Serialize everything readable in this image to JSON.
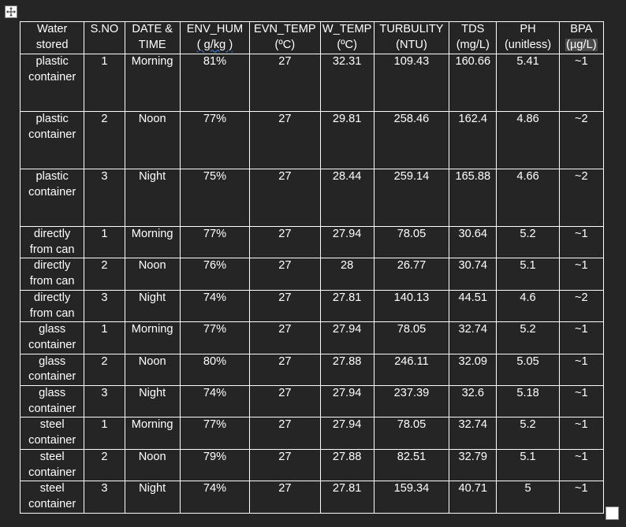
{
  "table": {
    "headers": [
      {
        "line1": "Water",
        "line2": "stored"
      },
      {
        "line1": "S.NO",
        "line2": ""
      },
      {
        "line1": "DATE &",
        "line2": "TIME"
      },
      {
        "line1": "ENV_HUM",
        "line2": "( g/kg )"
      },
      {
        "line1": "EVN_TEMP",
        "line2": "(ºC)"
      },
      {
        "line1": "W_TEMP",
        "line2": "(ºC)"
      },
      {
        "line1": "TURBULITY",
        "line2": "(NTU)"
      },
      {
        "line1": "TDS",
        "line2": "(mg/L)"
      },
      {
        "line1": "PH",
        "line2": "(unitless)"
      },
      {
        "line1": "BPA",
        "line2": "(µg/L)"
      }
    ],
    "rows": [
      {
        "water": "plastic container",
        "sno": "1",
        "time": "Morning",
        "hum": "81%",
        "env_temp": "27",
        "w_temp": "32.31",
        "turbidity": "109.43",
        "tds": "160.66",
        "ph": "5.41",
        "bpa": "~1"
      },
      {
        "water": "plastic container",
        "sno": "2",
        "time": "Noon",
        "hum": "77%",
        "env_temp": "27",
        "w_temp": "29.81",
        "turbidity": "258.46",
        "tds": "162.4",
        "ph": "4.86",
        "bpa": "~2"
      },
      {
        "water": "plastic container",
        "sno": "3",
        "time": "Night",
        "hum": "75%",
        "env_temp": "27",
        "w_temp": "28.44",
        "turbidity": "259.14",
        "tds": "165.88",
        "ph": "4.66",
        "bpa": "~2"
      },
      {
        "water": "directly from can",
        "sno": "1",
        "time": "Morning",
        "hum": "77%",
        "env_temp": "27",
        "w_temp": "27.94",
        "turbidity": "78.05",
        "tds": "30.64",
        "ph": "5.2",
        "bpa": "~1"
      },
      {
        "water": "directly from can",
        "sno": "2",
        "time": "Noon",
        "hum": "76%",
        "env_temp": "27",
        "w_temp": "28",
        "turbidity": "26.77",
        "tds": "30.74",
        "ph": "5.1",
        "bpa": "~1"
      },
      {
        "water": "directly from can",
        "sno": "3",
        "time": "Night",
        "hum": "74%",
        "env_temp": "27",
        "w_temp": "27.81",
        "turbidity": "140.13",
        "tds": "44.51",
        "ph": "4.6",
        "bpa": "~2"
      },
      {
        "water": "glass container",
        "sno": "1",
        "time": "Morning",
        "hum": "77%",
        "env_temp": "27",
        "w_temp": "27.94",
        "turbidity": "78.05",
        "tds": "32.74",
        "ph": "5.2",
        "bpa": "~1"
      },
      {
        "water": "glass container",
        "sno": "2",
        "time": "Noon",
        "hum": "80%",
        "env_temp": "27",
        "w_temp": "27.88",
        "turbidity": "246.11",
        "tds": "32.09",
        "ph": "5.05",
        "bpa": "~1"
      },
      {
        "water": "glass container",
        "sno": "3",
        "time": "Night",
        "hum": "74%",
        "env_temp": "27",
        "w_temp": "27.94",
        "turbidity": "237.39",
        "tds": "32.6",
        "ph": "5.18",
        "bpa": "~1"
      },
      {
        "water": "steel container",
        "sno": "1",
        "time": "Morning",
        "hum": "77%",
        "env_temp": "27",
        "w_temp": "27.94",
        "turbidity": "78.05",
        "tds": "32.74",
        "ph": "5.2",
        "bpa": "~1"
      },
      {
        "water": "steel container",
        "sno": "2",
        "time": "Noon",
        "hum": "79%",
        "env_temp": "27",
        "w_temp": "27.88",
        "turbidity": "82.51",
        "tds": "32.79",
        "ph": "5.1",
        "bpa": "~1"
      },
      {
        "water": "steel container",
        "sno": "3",
        "time": "Night",
        "hum": "74%",
        "env_temp": "27",
        "w_temp": "27.81",
        "turbidity": "159.34",
        "tds": "40.71",
        "ph": "5",
        "bpa": "~1"
      }
    ]
  },
  "icons": {
    "move_handle": "move-arrows-icon",
    "resize_handle": "resize-square-icon"
  },
  "colors": {
    "background": "#252525",
    "text": "#ffffff",
    "grid": "#ffffff",
    "unit_highlight": "#4a4a4a",
    "spellcheck_underline": "#3b82f6"
  }
}
